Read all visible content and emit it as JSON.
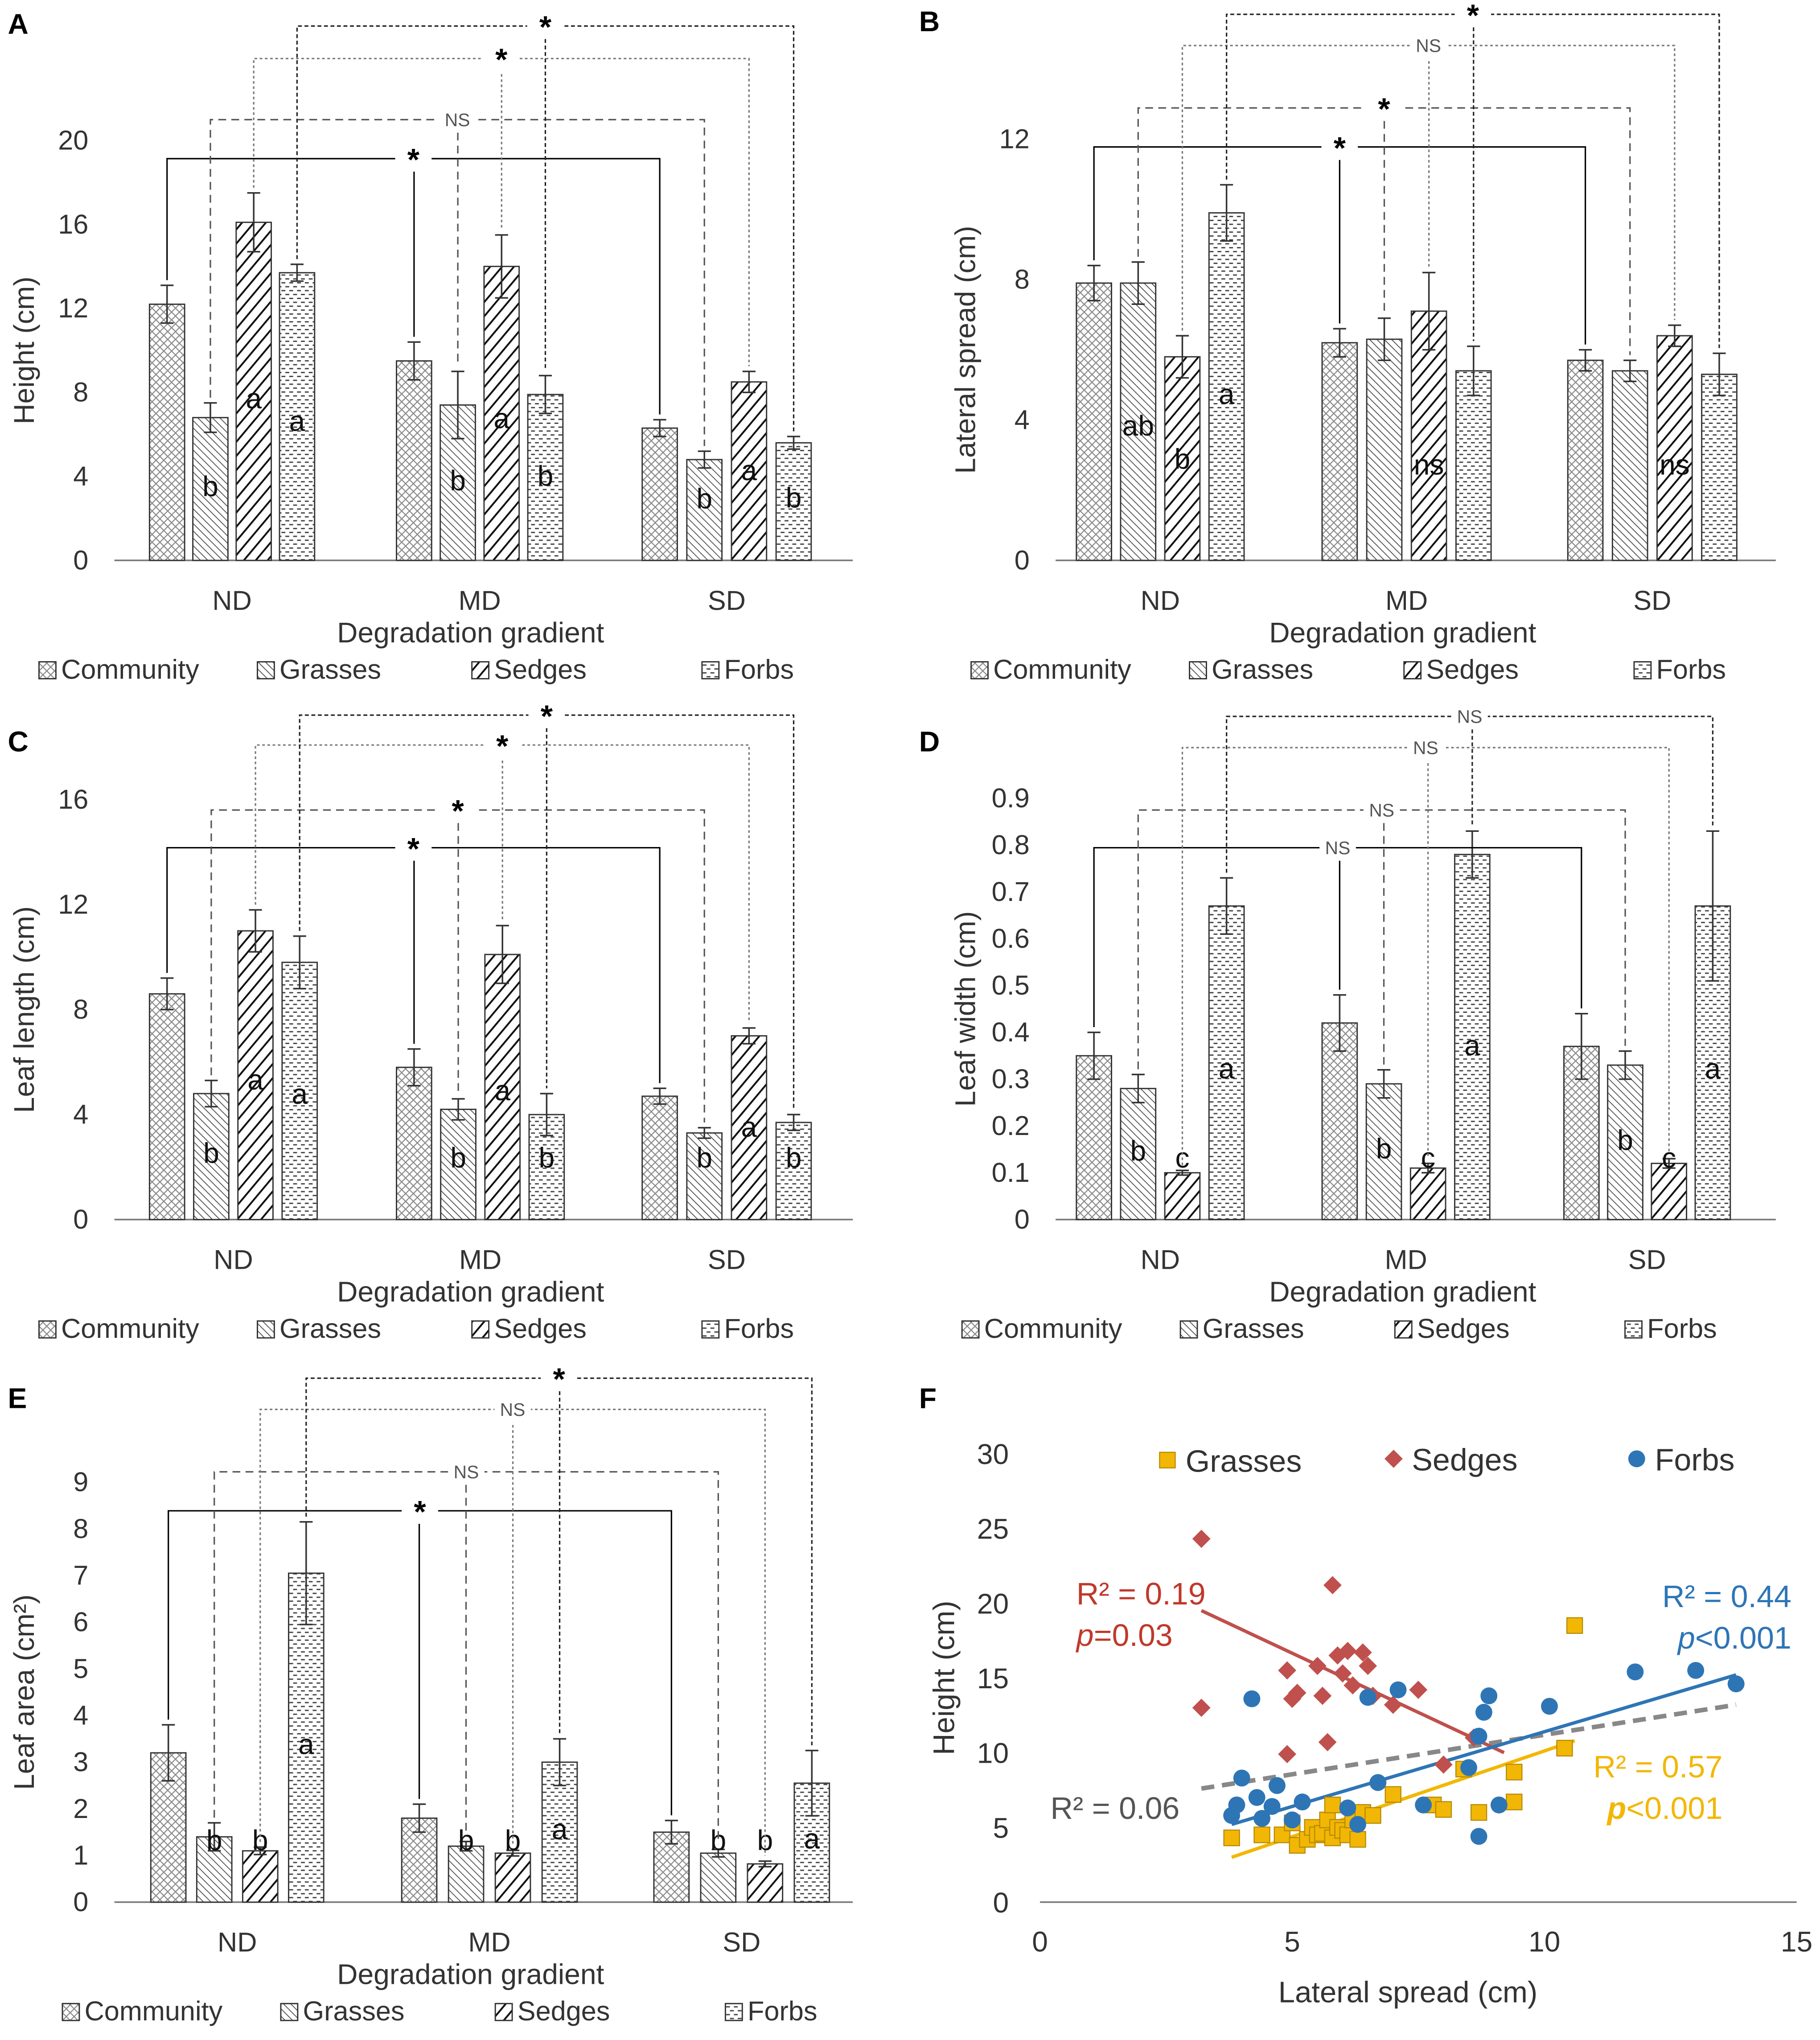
{
  "figure": {
    "group_labels": [
      "ND",
      "MD",
      "SD"
    ],
    "xlabel_bar": "Degradation gradient",
    "legend_labels": [
      "Community",
      "Grasses",
      "Sedges",
      "Forbs"
    ]
  },
  "chart_data": [
    {
      "panel": "A",
      "type": "bar",
      "ylabel": "Height (cm)",
      "ylim": [
        0,
        20
      ],
      "yticks": [
        0,
        4,
        8,
        12,
        16,
        20
      ],
      "series": [
        {
          "name": "Community",
          "values": [
            12.2,
            9.5,
            6.3
          ],
          "errors": [
            0.9,
            0.9,
            0.4
          ],
          "letters": [
            "",
            "",
            ""
          ]
        },
        {
          "name": "Grasses",
          "values": [
            6.8,
            7.4,
            4.8
          ],
          "errors": [
            0.7,
            1.6,
            0.4
          ],
          "letters": [
            "b",
            "b",
            "b"
          ]
        },
        {
          "name": "Sedges",
          "values": [
            16.1,
            14.0,
            8.5
          ],
          "errors": [
            1.4,
            1.5,
            0.5
          ],
          "letters": [
            "a",
            "a",
            "a"
          ]
        },
        {
          "name": "Forbs",
          "values": [
            13.7,
            7.9,
            5.6
          ],
          "errors": [
            0.4,
            0.9,
            0.3
          ],
          "letters": [
            "a",
            "b",
            "b"
          ]
        }
      ],
      "sig_labels": [
        "*",
        "NS",
        "*",
        "*"
      ]
    },
    {
      "panel": "B",
      "type": "bar",
      "ylabel": "Lateral spread (cm)",
      "ylim": [
        0,
        12
      ],
      "yticks": [
        0,
        4,
        8,
        12
      ],
      "series": [
        {
          "name": "Community",
          "values": [
            7.9,
            6.2,
            5.7
          ],
          "errors": [
            0.5,
            0.4,
            0.3
          ],
          "letters": [
            "",
            "",
            ""
          ]
        },
        {
          "name": "Grasses",
          "values": [
            7.9,
            6.3,
            5.4
          ],
          "errors": [
            0.6,
            0.6,
            0.3
          ],
          "letters": [
            "ab",
            "",
            ""
          ]
        },
        {
          "name": "Sedges",
          "values": [
            5.8,
            7.1,
            6.4
          ],
          "errors": [
            0.6,
            1.1,
            0.3
          ],
          "letters": [
            "b",
            "ns",
            "ns"
          ]
        },
        {
          "name": "Forbs",
          "values": [
            9.9,
            5.4,
            5.3
          ],
          "errors": [
            0.8,
            0.7,
            0.6
          ],
          "letters": [
            "a",
            "",
            ""
          ]
        }
      ],
      "sig_labels": [
        "*",
        "*",
        "NS",
        "*"
      ]
    },
    {
      "panel": "C",
      "type": "bar",
      "ylabel": "Leaf length (cm)",
      "ylim": [
        0,
        16
      ],
      "yticks": [
        0,
        4,
        8,
        12,
        16
      ],
      "series": [
        {
          "name": "Community",
          "values": [
            8.6,
            5.8,
            4.7
          ],
          "errors": [
            0.6,
            0.7,
            0.3
          ],
          "letters": [
            "",
            "",
            ""
          ]
        },
        {
          "name": "Grasses",
          "values": [
            4.8,
            4.2,
            3.3
          ],
          "errors": [
            0.5,
            0.4,
            0.2
          ],
          "letters": [
            "b",
            "b",
            "b"
          ]
        },
        {
          "name": "Sedges",
          "values": [
            11.0,
            10.1,
            7.0
          ],
          "errors": [
            0.8,
            1.1,
            0.3
          ],
          "letters": [
            "a",
            "a",
            "a"
          ]
        },
        {
          "name": "Forbs",
          "values": [
            9.8,
            4.0,
            3.7
          ],
          "errors": [
            1.0,
            0.8,
            0.3
          ],
          "letters": [
            "a",
            "b",
            "b"
          ]
        }
      ],
      "sig_labels": [
        "*",
        "*",
        "*",
        "*"
      ]
    },
    {
      "panel": "D",
      "type": "bar",
      "ylabel": "Leaf width (cm)",
      "ylim": [
        0,
        0.9
      ],
      "yticks": [
        0,
        0.1,
        0.2,
        0.3,
        0.4,
        0.5,
        0.6,
        0.7,
        0.8,
        0.9
      ],
      "series": [
        {
          "name": "Community",
          "values": [
            0.35,
            0.42,
            0.37
          ],
          "errors": [
            0.05,
            0.06,
            0.07
          ],
          "letters": [
            "",
            "",
            ""
          ]
        },
        {
          "name": "Grasses",
          "values": [
            0.28,
            0.29,
            0.33
          ],
          "errors": [
            0.03,
            0.03,
            0.03
          ],
          "letters": [
            "b",
            "b",
            "b"
          ]
        },
        {
          "name": "Sedges",
          "values": [
            0.1,
            0.11,
            0.12
          ],
          "errors": [
            0.005,
            0.01,
            0.01
          ],
          "letters": [
            "c",
            "c",
            "c"
          ]
        },
        {
          "name": "Forbs",
          "values": [
            0.67,
            0.78,
            0.67
          ],
          "errors": [
            0.06,
            0.05,
            0.16
          ],
          "letters": [
            "a",
            "a",
            "a"
          ]
        }
      ],
      "sig_labels": [
        "NS",
        "NS",
        "NS",
        "NS"
      ]
    },
    {
      "panel": "E",
      "type": "bar",
      "ylabel": "Leaf area (cm²)",
      "ylim": [
        0,
        9
      ],
      "yticks": [
        0,
        1,
        2,
        3,
        4,
        5,
        6,
        7,
        8,
        9
      ],
      "series": [
        {
          "name": "Community",
          "values": [
            3.2,
            1.8,
            1.5
          ],
          "errors": [
            0.6,
            0.3,
            0.25
          ],
          "letters": [
            "",
            "",
            ""
          ]
        },
        {
          "name": "Grasses",
          "values": [
            1.4,
            1.2,
            1.05
          ],
          "errors": [
            0.3,
            0.1,
            0.08
          ],
          "letters": [
            "b",
            "b",
            "b"
          ]
        },
        {
          "name": "Sedges",
          "values": [
            1.1,
            1.05,
            0.82
          ],
          "errors": [
            0.08,
            0.06,
            0.06
          ],
          "letters": [
            "b",
            "b",
            "b"
          ]
        },
        {
          "name": "Forbs",
          "values": [
            7.05,
            3.0,
            2.55
          ],
          "errors": [
            1.1,
            0.5,
            0.7
          ],
          "letters": [
            "a",
            "a",
            "a"
          ]
        }
      ],
      "sig_labels": [
        "*",
        "NS",
        "NS",
        "*"
      ]
    },
    {
      "panel": "F",
      "type": "scatter",
      "xlabel": "Lateral spread (cm)",
      "ylabel": "Height (cm)",
      "xlim": [
        0,
        15
      ],
      "ylim": [
        0,
        30
      ],
      "xticks": [
        0,
        5,
        10,
        15
      ],
      "yticks": [
        0,
        5,
        10,
        15,
        20,
        25,
        30
      ],
      "series": [
        {
          "name": "Grasses",
          "color": "#f2b705",
          "marker": "square",
          "points": [
            [
              3.8,
              4.3
            ],
            [
              4.4,
              4.5
            ],
            [
              4.8,
              4.5
            ],
            [
              5.0,
              5.3
            ],
            [
              5.1,
              3.8
            ],
            [
              5.3,
              4.2
            ],
            [
              5.4,
              5.0
            ],
            [
              5.5,
              4.5
            ],
            [
              5.6,
              4.6
            ],
            [
              5.7,
              5.5
            ],
            [
              5.8,
              4.3
            ],
            [
              5.8,
              6.5
            ],
            [
              5.9,
              5.0
            ],
            [
              6.0,
              4.8
            ],
            [
              6.1,
              4.5
            ],
            [
              6.2,
              5.5
            ],
            [
              6.3,
              4.2
            ],
            [
              6.4,
              6.0
            ],
            [
              6.6,
              5.8
            ],
            [
              7.0,
              7.2
            ],
            [
              7.8,
              6.5
            ],
            [
              8.0,
              6.2
            ],
            [
              8.4,
              8.9
            ],
            [
              8.7,
              6.0
            ],
            [
              9.4,
              6.7
            ],
            [
              9.4,
              8.7
            ],
            [
              10.4,
              10.3
            ],
            [
              10.6,
              18.5
            ]
          ],
          "fit": {
            "x": [
              3.8,
              10.6
            ],
            "y": [
              3.0,
              10.8
            ]
          },
          "r2": "R² = 0.57",
          "p": "<0.001"
        },
        {
          "name": "Sedges",
          "color": "#c0504d",
          "marker": "diamond",
          "points": [
            [
              3.2,
              24.3
            ],
            [
              3.2,
              13.0
            ],
            [
              4.9,
              9.9
            ],
            [
              4.9,
              15.5
            ],
            [
              5.0,
              13.6
            ],
            [
              5.1,
              14.0
            ],
            [
              5.5,
              15.8
            ],
            [
              5.6,
              13.8
            ],
            [
              5.7,
              10.7
            ],
            [
              5.8,
              21.2
            ],
            [
              5.9,
              16.5
            ],
            [
              6.0,
              15.3
            ],
            [
              6.1,
              16.8
            ],
            [
              6.2,
              14.5
            ],
            [
              6.4,
              16.7
            ],
            [
              6.5,
              15.8
            ],
            [
              6.6,
              13.8
            ],
            [
              7.0,
              13.2
            ],
            [
              7.5,
              14.2
            ],
            [
              8.0,
              9.2
            ],
            [
              8.6,
              11.0
            ]
          ],
          "fit": {
            "x": [
              3.2,
              9.2
            ],
            "y": [
              19.5,
              10.0
            ]
          },
          "r2": "R² = 0.19",
          "p": "=0.03"
        },
        {
          "name": "Forbs",
          "color": "#2e75b6",
          "marker": "circle",
          "points": [
            [
              3.8,
              5.8
            ],
            [
              3.9,
              6.5
            ],
            [
              4.0,
              8.3
            ],
            [
              4.2,
              13.6
            ],
            [
              4.3,
              7.0
            ],
            [
              4.4,
              5.6
            ],
            [
              4.6,
              6.4
            ],
            [
              4.7,
              7.8
            ],
            [
              5.0,
              5.5
            ],
            [
              5.2,
              6.7
            ],
            [
              6.1,
              6.3
            ],
            [
              6.3,
              5.2
            ],
            [
              6.5,
              13.7
            ],
            [
              6.7,
              8.0
            ],
            [
              7.1,
              14.2
            ],
            [
              7.6,
              6.5
            ],
            [
              8.5,
              9.0
            ],
            [
              8.7,
              11.1
            ],
            [
              8.7,
              4.4
            ],
            [
              8.8,
              12.7
            ],
            [
              8.9,
              13.8
            ],
            [
              9.1,
              6.5
            ],
            [
              10.1,
              13.1
            ],
            [
              11.8,
              15.4
            ],
            [
              13.0,
              15.5
            ],
            [
              13.8,
              14.6
            ]
          ],
          "fit": {
            "x": [
              3.8,
              13.8
            ],
            "y": [
              5.2,
              15.2
            ]
          },
          "r2": "R² = 0.44",
          "p": "<0.001"
        }
      ],
      "overall_fit": {
        "x": [
          3.2,
          13.8
        ],
        "y": [
          7.6,
          13.2
        ],
        "r2": "R² = 0.06"
      }
    }
  ]
}
